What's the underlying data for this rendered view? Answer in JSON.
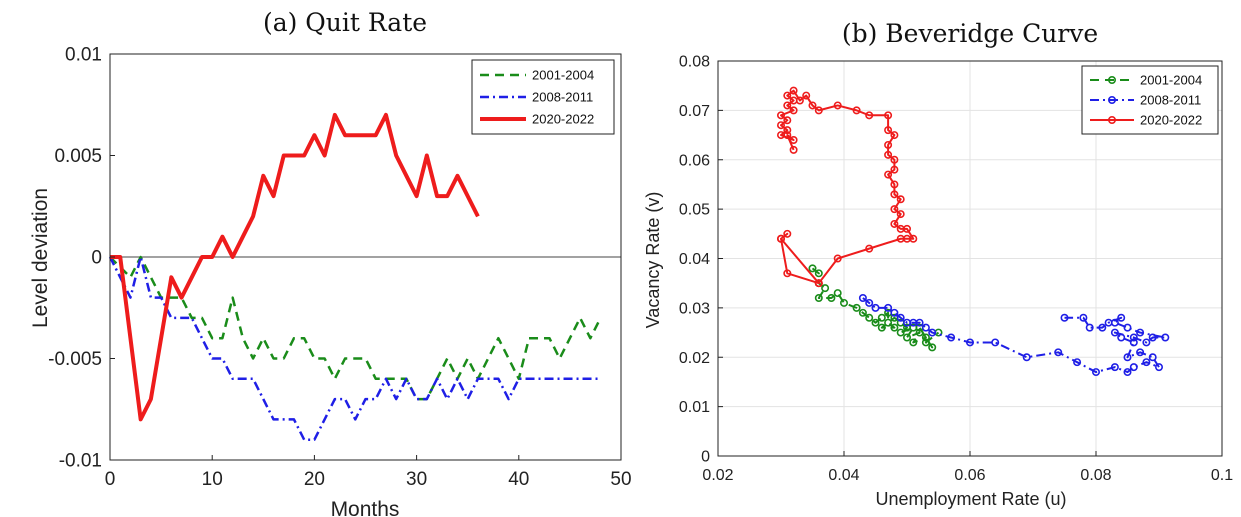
{
  "chart_data": [
    {
      "type": "line",
      "title": "(a) Quit Rate",
      "xlabel": "Months",
      "ylabel": "Level deviation",
      "xlim": [
        0,
        50
      ],
      "ylim": [
        -0.01,
        0.01
      ],
      "xticks": [
        0,
        10,
        20,
        30,
        40,
        50
      ],
      "yticks": [
        -0.01,
        -0.005,
        0,
        0.005,
        0.01
      ],
      "xtick_labels": [
        "0",
        "10",
        "20",
        "30",
        "40",
        "50"
      ],
      "ytick_labels": [
        "-0.01",
        "-0.005",
        "0",
        "0.005",
        "0.01"
      ],
      "reference_line_y": 0,
      "legend_position": "top-right",
      "series": [
        {
          "name": "2001-2004",
          "color": "#1a8c1a",
          "style": "dashed",
          "x": [
            0,
            1,
            2,
            3,
            4,
            5,
            6,
            7,
            8,
            9,
            10,
            11,
            12,
            13,
            14,
            15,
            16,
            17,
            18,
            19,
            20,
            21,
            22,
            23,
            24,
            25,
            26,
            27,
            28,
            29,
            30,
            31,
            32,
            33,
            34,
            35,
            36,
            37,
            38,
            39,
            40,
            41,
            42,
            43,
            44,
            45,
            46,
            47,
            48
          ],
          "y": [
            0,
            -0.0005,
            -0.001,
            0,
            -0.001,
            -0.002,
            -0.002,
            -0.002,
            -0.003,
            -0.003,
            -0.004,
            -0.004,
            -0.002,
            -0.004,
            -0.005,
            -0.004,
            -0.005,
            -0.005,
            -0.004,
            -0.004,
            -0.005,
            -0.005,
            -0.006,
            -0.005,
            -0.005,
            -0.005,
            -0.006,
            -0.006,
            -0.006,
            -0.006,
            -0.007,
            -0.007,
            -0.006,
            -0.005,
            -0.006,
            -0.005,
            -0.006,
            -0.005,
            -0.004,
            -0.005,
            -0.006,
            -0.004,
            -0.004,
            -0.004,
            -0.005,
            -0.004,
            -0.003,
            -0.004,
            -0.003
          ]
        },
        {
          "name": "2008-2011",
          "color": "#1f1fe6",
          "style": "dashdot",
          "x": [
            0,
            1,
            2,
            3,
            4,
            5,
            6,
            7,
            8,
            9,
            10,
            11,
            12,
            13,
            14,
            15,
            16,
            17,
            18,
            19,
            20,
            21,
            22,
            23,
            24,
            25,
            26,
            27,
            28,
            29,
            30,
            31,
            32,
            33,
            34,
            35,
            36,
            37,
            38,
            39,
            40,
            41,
            42,
            43,
            44,
            45,
            46,
            47,
            48
          ],
          "y": [
            0,
            -0.001,
            -0.002,
            0,
            -0.002,
            -0.002,
            -0.003,
            -0.003,
            -0.003,
            -0.004,
            -0.005,
            -0.005,
            -0.006,
            -0.006,
            -0.006,
            -0.007,
            -0.008,
            -0.008,
            -0.008,
            -0.009,
            -0.009,
            -0.008,
            -0.007,
            -0.007,
            -0.008,
            -0.007,
            -0.007,
            -0.006,
            -0.007,
            -0.006,
            -0.007,
            -0.007,
            -0.006,
            -0.007,
            -0.006,
            -0.007,
            -0.006,
            -0.006,
            -0.006,
            -0.007,
            -0.006,
            -0.006,
            -0.006,
            -0.006,
            -0.006,
            -0.006,
            -0.006,
            -0.006,
            -0.006
          ]
        },
        {
          "name": "2020-2022",
          "color": "#ee1c1c",
          "style": "solid",
          "x": [
            0,
            1,
            2,
            3,
            4,
            5,
            6,
            7,
            8,
            9,
            10,
            11,
            12,
            13,
            14,
            15,
            16,
            17,
            18,
            19,
            20,
            21,
            22,
            23,
            24,
            25,
            26,
            27,
            28,
            29,
            30,
            31,
            32,
            33,
            34,
            35,
            36
          ],
          "y": [
            0,
            0,
            -0.004,
            -0.008,
            -0.007,
            -0.004,
            -0.001,
            -0.002,
            -0.001,
            0,
            0,
            0.001,
            0,
            0.001,
            0.002,
            0.004,
            0.003,
            0.005,
            0.005,
            0.005,
            0.006,
            0.005,
            0.007,
            0.006,
            0.006,
            0.006,
            0.006,
            0.007,
            0.005,
            0.004,
            0.003,
            0.005,
            0.003,
            0.003,
            0.004,
            0.003,
            0.002
          ]
        }
      ]
    },
    {
      "type": "line",
      "title": "(b) Beveridge Curve",
      "xlabel": "Unemployment Rate (u)",
      "ylabel": "Vacancy Rate (v)",
      "xlim": [
        0.02,
        0.1
      ],
      "ylim": [
        0,
        0.08
      ],
      "xticks": [
        0.02,
        0.04,
        0.06,
        0.08,
        0.1
      ],
      "yticks": [
        0,
        0.01,
        0.02,
        0.03,
        0.04,
        0.05,
        0.06,
        0.07,
        0.08
      ],
      "xtick_labels": [
        "0.02",
        "0.04",
        "0.06",
        "0.08",
        "0.1"
      ],
      "ytick_labels": [
        "0",
        "0.01",
        "0.02",
        "0.03",
        "0.04",
        "0.05",
        "0.06",
        "0.07",
        "0.08"
      ],
      "grid": true,
      "markers": "circle",
      "legend_position": "top-right",
      "series": [
        {
          "name": "2001-2004",
          "color": "#1a8c1a",
          "style": "dashed",
          "points": [
            [
              0.035,
              0.038
            ],
            [
              0.036,
              0.037
            ],
            [
              0.036,
              0.035
            ],
            [
              0.037,
              0.034
            ],
            [
              0.036,
              0.032
            ],
            [
              0.038,
              0.032
            ],
            [
              0.039,
              0.033
            ],
            [
              0.04,
              0.031
            ],
            [
              0.042,
              0.03
            ],
            [
              0.043,
              0.029
            ],
            [
              0.044,
              0.028
            ],
            [
              0.045,
              0.027
            ],
            [
              0.046,
              0.028
            ],
            [
              0.047,
              0.029
            ],
            [
              0.047,
              0.027
            ],
            [
              0.048,
              0.026
            ],
            [
              0.046,
              0.026
            ],
            [
              0.048,
              0.028
            ],
            [
              0.049,
              0.027
            ],
            [
              0.05,
              0.026
            ],
            [
              0.049,
              0.025
            ],
            [
              0.051,
              0.026
            ],
            [
              0.05,
              0.024
            ],
            [
              0.052,
              0.025
            ],
            [
              0.051,
              0.023
            ],
            [
              0.053,
              0.024
            ],
            [
              0.052,
              0.026
            ],
            [
              0.054,
              0.022
            ],
            [
              0.053,
              0.023
            ],
            [
              0.055,
              0.025
            ]
          ]
        },
        {
          "name": "2008-2011",
          "color": "#1f1fe6",
          "style": "dashdot",
          "points": [
            [
              0.043,
              0.032
            ],
            [
              0.044,
              0.031
            ],
            [
              0.045,
              0.03
            ],
            [
              0.047,
              0.03
            ],
            [
              0.048,
              0.029
            ],
            [
              0.049,
              0.028
            ],
            [
              0.05,
              0.027
            ],
            [
              0.051,
              0.027
            ],
            [
              0.052,
              0.027
            ],
            [
              0.053,
              0.026
            ],
            [
              0.054,
              0.025
            ],
            [
              0.057,
              0.024
            ],
            [
              0.06,
              0.023
            ],
            [
              0.064,
              0.023
            ],
            [
              0.069,
              0.02
            ],
            [
              0.074,
              0.021
            ],
            [
              0.077,
              0.019
            ],
            [
              0.08,
              0.017
            ],
            [
              0.083,
              0.018
            ],
            [
              0.085,
              0.017
            ],
            [
              0.086,
              0.018
            ],
            [
              0.088,
              0.019
            ],
            [
              0.09,
              0.018
            ],
            [
              0.089,
              0.02
            ],
            [
              0.087,
              0.021
            ],
            [
              0.085,
              0.02
            ],
            [
              0.086,
              0.023
            ],
            [
              0.084,
              0.024
            ],
            [
              0.083,
              0.025
            ],
            [
              0.086,
              0.024
            ],
            [
              0.088,
              0.023
            ],
            [
              0.089,
              0.024
            ],
            [
              0.091,
              0.024
            ],
            [
              0.087,
              0.025
            ],
            [
              0.085,
              0.026
            ],
            [
              0.083,
              0.027
            ],
            [
              0.084,
              0.028
            ],
            [
              0.082,
              0.027
            ],
            [
              0.081,
              0.026
            ],
            [
              0.079,
              0.026
            ],
            [
              0.078,
              0.028
            ],
            [
              0.075,
              0.028
            ]
          ]
        },
        {
          "name": "2020-2022",
          "color": "#ee1c1c",
          "style": "solid",
          "points": [
            [
              0.036,
              0.035
            ],
            [
              0.031,
              0.037
            ],
            [
              0.03,
              0.044
            ],
            [
              0.031,
              0.045
            ],
            [
              0.03,
              0.044
            ],
            [
              0.036,
              0.035
            ],
            [
              0.039,
              0.04
            ],
            [
              0.044,
              0.042
            ],
            [
              0.049,
              0.044
            ],
            [
              0.05,
              0.044
            ],
            [
              0.051,
              0.044
            ],
            [
              0.05,
              0.046
            ],
            [
              0.049,
              0.046
            ],
            [
              0.048,
              0.047
            ],
            [
              0.049,
              0.049
            ],
            [
              0.048,
              0.05
            ],
            [
              0.049,
              0.052
            ],
            [
              0.048,
              0.053
            ],
            [
              0.048,
              0.055
            ],
            [
              0.047,
              0.057
            ],
            [
              0.048,
              0.058
            ],
            [
              0.048,
              0.06
            ],
            [
              0.047,
              0.061
            ],
            [
              0.047,
              0.063
            ],
            [
              0.048,
              0.065
            ],
            [
              0.047,
              0.066
            ],
            [
              0.047,
              0.069
            ],
            [
              0.044,
              0.069
            ],
            [
              0.042,
              0.07
            ],
            [
              0.039,
              0.071
            ],
            [
              0.036,
              0.07
            ],
            [
              0.035,
              0.071
            ],
            [
              0.034,
              0.073
            ],
            [
              0.033,
              0.072
            ],
            [
              0.032,
              0.074
            ],
            [
              0.031,
              0.073
            ],
            [
              0.032,
              0.072
            ],
            [
              0.031,
              0.071
            ],
            [
              0.032,
              0.07
            ],
            [
              0.03,
              0.069
            ],
            [
              0.031,
              0.068
            ],
            [
              0.03,
              0.067
            ],
            [
              0.031,
              0.066
            ],
            [
              0.03,
              0.065
            ],
            [
              0.032,
              0.064
            ],
            [
              0.031,
              0.065
            ],
            [
              0.032,
              0.062
            ]
          ]
        }
      ]
    }
  ]
}
